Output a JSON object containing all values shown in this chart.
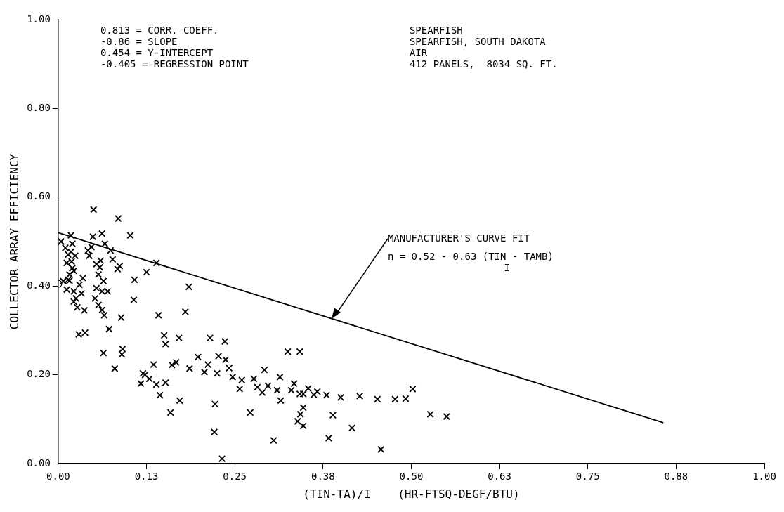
{
  "chart_data": {
    "type": "scatter",
    "xlabel": "(TIN-TA)/I    (HR-FTSQ-DEGF/BTU)",
    "ylabel": "COLLECTOR ARRAY EFFICIENCY",
    "xlim": [
      0,
      1
    ],
    "ylim": [
      0,
      1
    ],
    "xticks": [
      {
        "value": 0,
        "label": "0.00"
      },
      {
        "value": 0.125,
        "label": "0.13"
      },
      {
        "value": 0.25,
        "label": "0.25"
      },
      {
        "value": 0.375,
        "label": "0.38"
      },
      {
        "value": 0.5,
        "label": "0.50"
      },
      {
        "value": 0.625,
        "label": "0.63"
      },
      {
        "value": 0.75,
        "label": "0.75"
      },
      {
        "value": 0.875,
        "label": "0.88"
      },
      {
        "value": 1,
        "label": "1.00"
      }
    ],
    "yticks": [
      {
        "value": 0,
        "label": "0.00"
      },
      {
        "value": 0.2,
        "label": "0.20"
      },
      {
        "value": 0.4,
        "label": "0.40"
      },
      {
        "value": 0.6,
        "label": "0.60"
      },
      {
        "value": 0.8,
        "label": "0.80"
      },
      {
        "value": 1,
        "label": "1.00"
      }
    ],
    "grid": false,
    "legend": false,
    "annotations": [
      "0.813 = CORR. COEFF.",
      "-0.86 = SLOPE",
      "0.454 = Y-INTERCEPT",
      "-0.405 = REGRESSION POINT",
      "SPEARFISH",
      "SPEARFISH, SOUTH DAKOTA",
      "AIR",
      "412 PANELS,  8034 SQ. FT.",
      {
        "text": "MANUFACTURER'S CURVE FIT",
        "x": 0.387,
        "y": 0.326
      },
      "n = 0.52 - 0.63 (TIN - TAMB)",
      "I"
    ],
    "series": [
      {
        "marker": "cross",
        "color": "#000000",
        "x": [
          0.004,
          0.01,
          0.02,
          0.018,
          0.019,
          0.022,
          0.014,
          0.007,
          0.012,
          0.016,
          0.022,
          0.024,
          0.012,
          0.014,
          0.018,
          0.02,
          0.016,
          0.025,
          0.027,
          0.029,
          0.022,
          0.03,
          0.033,
          0.035,
          0.038,
          0.037,
          0.042,
          0.044,
          0.047,
          0.049,
          0.05,
          0.062,
          0.054,
          0.052,
          0.054,
          0.057,
          0.059,
          0.06,
          0.057,
          0.062,
          0.065,
          0.062,
          0.064,
          0.066,
          0.064,
          0.07,
          0.072,
          0.074,
          0.077,
          0.084,
          0.085,
          0.087,
          0.08,
          0.089,
          0.09,
          0.091,
          0.102,
          0.108,
          0.107,
          0.125,
          0.139,
          0.142,
          0.15,
          0.152,
          0.117,
          0.12,
          0.123,
          0.129,
          0.135,
          0.139,
          0.144,
          0.152,
          0.161,
          0.167,
          0.186,
          0.198,
          0.207,
          0.212,
          0.225,
          0.237,
          0.242,
          0.227,
          0.247,
          0.26,
          0.277,
          0.292,
          0.297,
          0.31,
          0.314,
          0.33,
          0.334,
          0.342,
          0.347,
          0.354,
          0.362,
          0.367,
          0.38,
          0.4,
          0.427,
          0.452,
          0.477,
          0.502,
          0.342,
          0.492,
          0.159,
          0.222,
          0.272,
          0.221,
          0.232,
          0.305,
          0.315,
          0.347,
          0.257,
          0.282,
          0.289,
          0.18,
          0.171,
          0.215,
          0.236,
          0.325,
          0.185,
          0.527,
          0.55,
          0.389,
          0.416,
          0.383,
          0.457,
          0.347,
          0.339,
          0.343,
          0.172
        ],
        "values": [
          0.5,
          0.486,
          0.495,
          0.514,
          0.455,
          0.434,
          0.414,
          0.411,
          0.392,
          0.412,
          0.388,
          0.468,
          0.452,
          0.471,
          0.477,
          0.44,
          0.426,
          0.372,
          0.352,
          0.291,
          0.365,
          0.403,
          0.383,
          0.418,
          0.295,
          0.345,
          0.48,
          0.468,
          0.488,
          0.511,
          0.572,
          0.518,
          0.449,
          0.372,
          0.395,
          0.426,
          0.442,
          0.457,
          0.357,
          0.346,
          0.334,
          0.388,
          0.411,
          0.495,
          0.249,
          0.388,
          0.303,
          0.48,
          0.46,
          0.438,
          0.552,
          0.445,
          0.214,
          0.329,
          0.246,
          0.258,
          0.514,
          0.414,
          0.369,
          0.431,
          0.452,
          0.334,
          0.289,
          0.269,
          0.18,
          0.203,
          0.2,
          0.191,
          0.223,
          0.178,
          0.154,
          0.182,
          0.222,
          0.228,
          0.214,
          0.24,
          0.206,
          0.223,
          0.203,
          0.234,
          0.215,
          0.242,
          0.195,
          0.188,
          0.191,
          0.211,
          0.175,
          0.165,
          0.195,
          0.165,
          0.18,
          0.157,
          0.157,
          0.169,
          0.155,
          0.162,
          0.154,
          0.149,
          0.152,
          0.145,
          0.145,
          0.168,
          0.252,
          0.146,
          0.115,
          0.134,
          0.115,
          0.071,
          0.011,
          0.052,
          0.142,
          0.126,
          0.168,
          0.172,
          0.16,
          0.342,
          0.283,
          0.283,
          0.275,
          0.252,
          0.398,
          0.111,
          0.106,
          0.109,
          0.08,
          0.057,
          0.032,
          0.085,
          0.095,
          0.111,
          0.142
        ]
      },
      {
        "marker": "circle",
        "color": "#000000",
        "x": [
          0
        ],
        "values": [
          0.405
        ]
      },
      {
        "type": "line",
        "marker": "none",
        "line_style": "solid",
        "color": "#000000",
        "x": [
          0,
          0.857
        ],
        "values": [
          0.52,
          0.092
        ]
      }
    ]
  }
}
